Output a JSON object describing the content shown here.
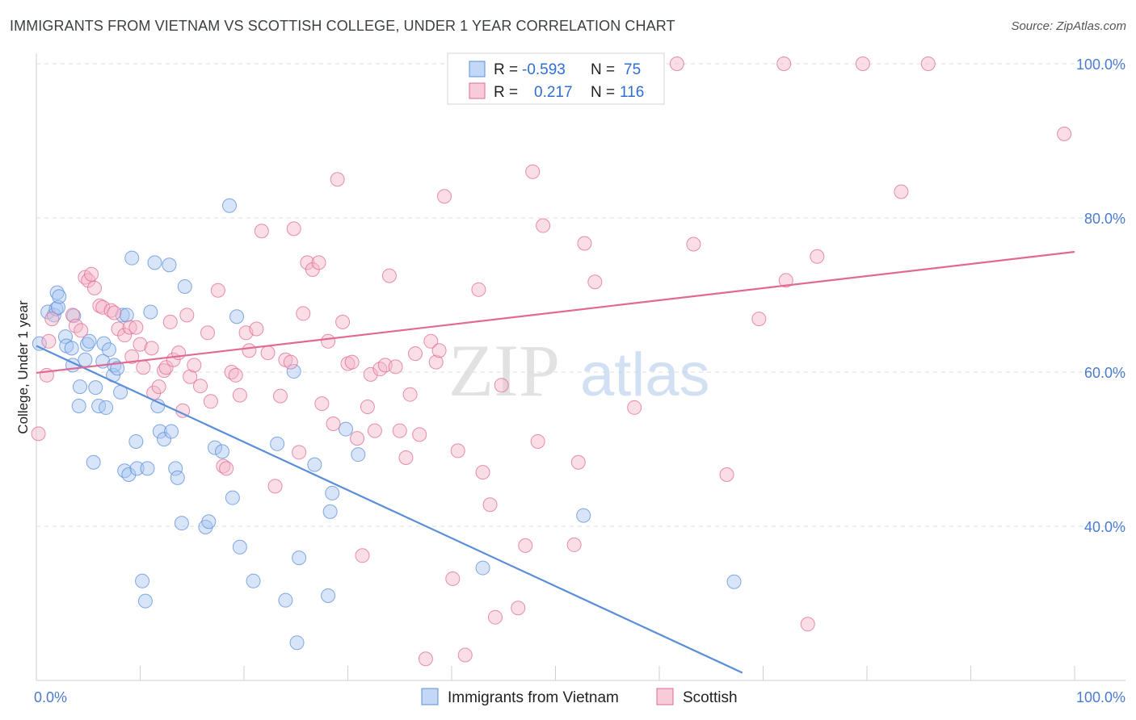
{
  "title": "IMMIGRANTS FROM VIETNAM VS SCOTTISH COLLEGE, UNDER 1 YEAR CORRELATION CHART",
  "source": "Source: ZipAtlas.com",
  "watermark": {
    "zip": "ZIP",
    "atlas": "atlas"
  },
  "legend_stats": [
    {
      "r_label": "R =",
      "r_value": "-0.593",
      "n_label": "N =",
      "n_value": "75",
      "color": "#a9c6f2"
    },
    {
      "r_label": "R =",
      "r_value": "0.217",
      "n_label": "N =",
      "n_value": "116",
      "color": "#f4b6c8"
    }
  ],
  "chart_data": {
    "type": "scatter",
    "ylabel": "College, Under 1 year",
    "xlim": [
      0,
      100
    ],
    "ylim": [
      20,
      100
    ],
    "y_ticks": [
      {
        "value": 40,
        "label": "40.0%"
      },
      {
        "value": 60,
        "label": "60.0%"
      },
      {
        "value": 80,
        "label": "80.0%"
      },
      {
        "value": 100,
        "label": "100.0%"
      }
    ],
    "x_tick_labels": [
      {
        "value": 0,
        "label": "0.0%"
      },
      {
        "value": 100,
        "label": "100.0%"
      }
    ],
    "grid": true,
    "series": [
      {
        "name": "Immigrants from Vietnam",
        "color": "#5b8ed8",
        "fill": "#a9c6f2",
        "trend": {
          "x0": 0,
          "y0": 63.4,
          "x1": 68,
          "y1": 21
        },
        "points": [
          [
            0.3,
            63.7
          ],
          [
            1.1,
            67.8
          ],
          [
            1.7,
            67.4
          ],
          [
            1.9,
            68.2
          ],
          [
            2.0,
            70.3
          ],
          [
            2.1,
            68.4
          ],
          [
            2.2,
            69.8
          ],
          [
            2.8,
            64.6
          ],
          [
            2.9,
            63.4
          ],
          [
            3.4,
            63.1
          ],
          [
            3.5,
            60.9
          ],
          [
            3.6,
            67.3
          ],
          [
            4.1,
            55.6
          ],
          [
            4.2,
            58.1
          ],
          [
            4.7,
            61.6
          ],
          [
            4.9,
            63.6
          ],
          [
            5.1,
            64.0
          ],
          [
            5.5,
            48.3
          ],
          [
            5.7,
            58.0
          ],
          [
            6.0,
            55.6
          ],
          [
            6.4,
            61.4
          ],
          [
            6.5,
            63.7
          ],
          [
            6.7,
            55.4
          ],
          [
            7.0,
            62.9
          ],
          [
            7.4,
            59.6
          ],
          [
            7.5,
            60.9
          ],
          [
            7.8,
            60.5
          ],
          [
            8.1,
            57.4
          ],
          [
            8.3,
            67.4
          ],
          [
            8.5,
            47.2
          ],
          [
            8.7,
            67.4
          ],
          [
            8.9,
            46.7
          ],
          [
            9.2,
            74.8
          ],
          [
            9.6,
            51.0
          ],
          [
            9.7,
            47.5
          ],
          [
            10.2,
            32.9
          ],
          [
            10.5,
            30.3
          ],
          [
            10.7,
            47.5
          ],
          [
            11.0,
            67.8
          ],
          [
            11.4,
            74.2
          ],
          [
            11.7,
            55.6
          ],
          [
            11.9,
            52.3
          ],
          [
            12.3,
            51.3
          ],
          [
            12.8,
            73.9
          ],
          [
            13.0,
            52.3
          ],
          [
            13.4,
            47.5
          ],
          [
            13.6,
            46.3
          ],
          [
            14.0,
            40.4
          ],
          [
            14.3,
            71.1
          ],
          [
            16.3,
            39.9
          ],
          [
            16.6,
            40.6
          ],
          [
            17.2,
            50.2
          ],
          [
            17.9,
            49.7
          ],
          [
            18.6,
            81.6
          ],
          [
            18.9,
            43.7
          ],
          [
            19.3,
            67.2
          ],
          [
            19.6,
            37.3
          ],
          [
            20.9,
            32.9
          ],
          [
            23.2,
            50.7
          ],
          [
            24.0,
            30.4
          ],
          [
            24.8,
            60.1
          ],
          [
            25.1,
            24.9
          ],
          [
            25.3,
            35.9
          ],
          [
            26.8,
            48.0
          ],
          [
            28.1,
            31.0
          ],
          [
            28.5,
            44.3
          ],
          [
            28.3,
            41.9
          ],
          [
            29.8,
            52.6
          ],
          [
            31.0,
            49.3
          ],
          [
            43.0,
            34.6
          ],
          [
            52.7,
            41.4
          ],
          [
            67.2,
            32.8
          ]
        ]
      },
      {
        "name": "Scottish",
        "color": "#e06a94",
        "fill": "#f4b6c8",
        "trend": {
          "x0": 0,
          "y0": 59.9,
          "x1": 100,
          "y1": 75.6
        },
        "points": [
          [
            0.2,
            52.0
          ],
          [
            1.0,
            59.6
          ],
          [
            1.2,
            64.0
          ],
          [
            1.5,
            66.9
          ],
          [
            3.5,
            67.4
          ],
          [
            3.8,
            66.0
          ],
          [
            4.3,
            65.4
          ],
          [
            4.7,
            72.3
          ],
          [
            5.0,
            71.9
          ],
          [
            5.3,
            72.7
          ],
          [
            5.6,
            70.9
          ],
          [
            6.1,
            68.6
          ],
          [
            6.4,
            68.4
          ],
          [
            7.2,
            68.0
          ],
          [
            7.5,
            67.7
          ],
          [
            7.9,
            65.6
          ],
          [
            8.5,
            64.8
          ],
          [
            9.0,
            65.8
          ],
          [
            9.2,
            62.0
          ],
          [
            9.6,
            65.8
          ],
          [
            10.0,
            63.6
          ],
          [
            10.3,
            60.6
          ],
          [
            11.1,
            63.1
          ],
          [
            11.3,
            57.3
          ],
          [
            11.8,
            58.1
          ],
          [
            12.3,
            60.2
          ],
          [
            12.5,
            60.6
          ],
          [
            12.9,
            66.5
          ],
          [
            13.2,
            61.6
          ],
          [
            13.7,
            62.5
          ],
          [
            14.1,
            55.0
          ],
          [
            14.5,
            67.4
          ],
          [
            14.8,
            59.4
          ],
          [
            15.2,
            60.9
          ],
          [
            15.8,
            58.2
          ],
          [
            16.5,
            65.1
          ],
          [
            16.8,
            56.2
          ],
          [
            17.5,
            70.6
          ],
          [
            18.0,
            47.8
          ],
          [
            18.3,
            47.5
          ],
          [
            18.8,
            60.0
          ],
          [
            19.2,
            59.6
          ],
          [
            19.6,
            57.0
          ],
          [
            20.2,
            65.1
          ],
          [
            20.5,
            62.8
          ],
          [
            21.2,
            65.6
          ],
          [
            21.7,
            78.3
          ],
          [
            22.3,
            62.5
          ],
          [
            23.0,
            45.2
          ],
          [
            23.5,
            56.9
          ],
          [
            24.0,
            61.6
          ],
          [
            24.5,
            61.3
          ],
          [
            24.8,
            78.6
          ],
          [
            25.3,
            49.6
          ],
          [
            25.7,
            67.6
          ],
          [
            26.1,
            74.2
          ],
          [
            26.6,
            73.3
          ],
          [
            27.2,
            74.2
          ],
          [
            27.5,
            55.9
          ],
          [
            28.1,
            64.0
          ],
          [
            28.6,
            53.3
          ],
          [
            29.0,
            85.0
          ],
          [
            29.5,
            66.5
          ],
          [
            30.0,
            61.1
          ],
          [
            30.4,
            61.3
          ],
          [
            30.9,
            51.4
          ],
          [
            31.4,
            36.2
          ],
          [
            31.9,
            55.5
          ],
          [
            32.2,
            59.7
          ],
          [
            32.6,
            52.4
          ],
          [
            33.1,
            60.4
          ],
          [
            33.6,
            60.9
          ],
          [
            34.0,
            72.5
          ],
          [
            34.6,
            60.7
          ],
          [
            35.0,
            52.4
          ],
          [
            35.6,
            48.9
          ],
          [
            36.0,
            57.1
          ],
          [
            36.5,
            62.4
          ],
          [
            36.9,
            51.9
          ],
          [
            37.5,
            22.8
          ],
          [
            38.0,
            64.0
          ],
          [
            38.5,
            61.3
          ],
          [
            38.8,
            62.8
          ],
          [
            39.3,
            82.8
          ],
          [
            40.1,
            33.2
          ],
          [
            40.6,
            49.8
          ],
          [
            41.3,
            23.3
          ],
          [
            42.6,
            70.7
          ],
          [
            43.0,
            47.0
          ],
          [
            43.7,
            42.8
          ],
          [
            44.2,
            28.2
          ],
          [
            44.8,
            58.3
          ],
          [
            46.4,
            29.4
          ],
          [
            47.1,
            37.5
          ],
          [
            47.8,
            86.0
          ],
          [
            48.3,
            51.0
          ],
          [
            48.8,
            79.0
          ],
          [
            51.8,
            37.6
          ],
          [
            52.2,
            48.3
          ],
          [
            52.8,
            76.7
          ],
          [
            53.8,
            71.7
          ],
          [
            55.0,
            100.0
          ],
          [
            57.3,
            100.0
          ],
          [
            57.6,
            55.4
          ],
          [
            61.7,
            100.0
          ],
          [
            63.3,
            76.6
          ],
          [
            66.5,
            46.7
          ],
          [
            69.6,
            66.9
          ],
          [
            72.0,
            100.0
          ],
          [
            72.2,
            71.9
          ],
          [
            74.3,
            27.3
          ],
          [
            75.2,
            75.0
          ],
          [
            79.6,
            100.0
          ],
          [
            83.3,
            83.4
          ],
          [
            85.9,
            100.0
          ],
          [
            99.0,
            90.9
          ]
        ]
      }
    ]
  }
}
